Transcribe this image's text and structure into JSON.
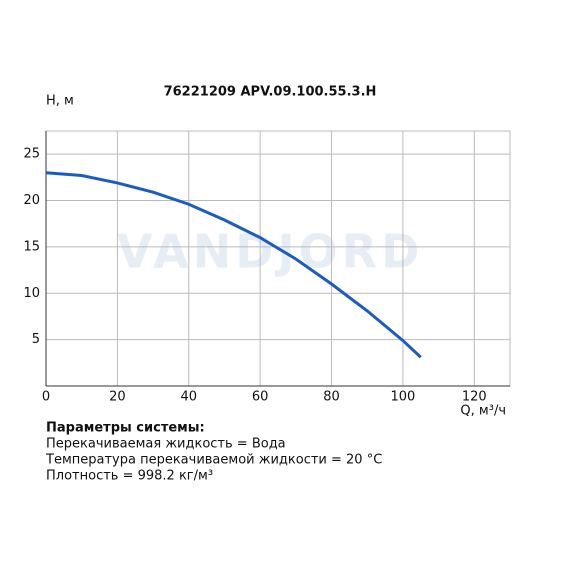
{
  "chart_data": {
    "type": "line",
    "title": "76221209 APV.09.100.55.3.H",
    "watermark": "VANDJORD",
    "y_label": "H, м",
    "x_label": "Q, м³/ч",
    "x": [
      0,
      10,
      20,
      30,
      40,
      50,
      60,
      70,
      80,
      90,
      100,
      105
    ],
    "series": [
      {
        "name": "H",
        "color": "#1a5cc4",
        "values": [
          23,
          22.7,
          21.9,
          20.9,
          19.6,
          17.9,
          16,
          13.7,
          11,
          8.1,
          4.9,
          3.1
        ]
      }
    ],
    "xlim": [
      0,
      130
    ],
    "ylim": [
      0,
      27.5
    ],
    "xticks": [
      0,
      20,
      40,
      60,
      80,
      100,
      120
    ],
    "yticks": [
      5,
      10,
      15,
      20,
      25
    ],
    "grid": true,
    "params_title": "Параметры системы:",
    "params": [
      "Перекачиваемая жидкость = Вода",
      "Температура перекачиваемой жидкости = 20 °C",
      "Плотность = 998.2 кг/м³"
    ]
  }
}
